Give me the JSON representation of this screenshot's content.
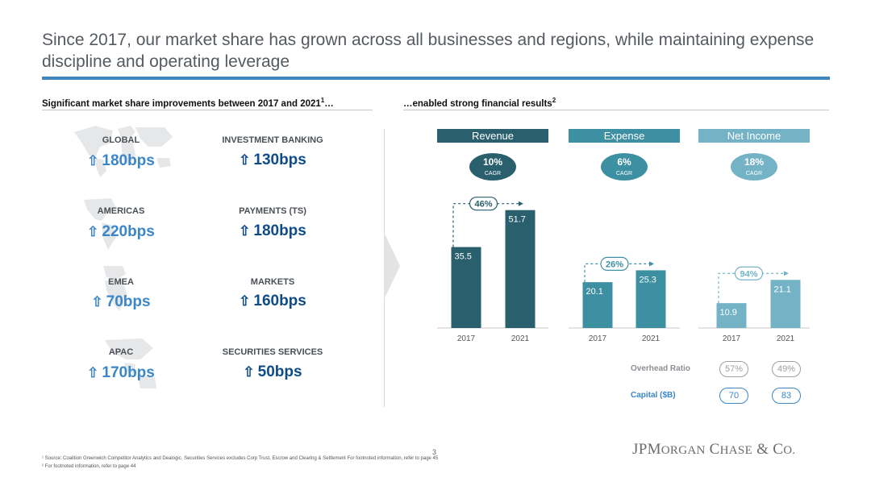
{
  "title": "Since 2017, our market share has grown across all businesses and regions, while maintaining expense discipline and operating leverage",
  "left_subtitle": "Significant market share improvements between 2017 and 2021",
  "left_subtitle_sup": "1",
  "left_subtitle_tail": "…",
  "right_subtitle": "…enabled strong financial results",
  "right_subtitle_sup": "2",
  "arrow_glyph": "⇧",
  "regions": [
    {
      "label": "GLOBAL",
      "value": "180bps"
    },
    {
      "label": "AMERICAS",
      "value": "220bps"
    },
    {
      "label": "EMEA",
      "value": "70bps"
    },
    {
      "label": "APAC",
      "value": "170bps"
    }
  ],
  "businesses": [
    {
      "label": "INVESTMENT BANKING",
      "value": "130bps"
    },
    {
      "label": "PAYMENTS (TS)",
      "value": "180bps"
    },
    {
      "label": "MARKETS",
      "value": "160bps"
    },
    {
      "label": "SECURITIES SERVICES",
      "value": "50bps"
    }
  ],
  "colors": {
    "revenue": "#2a5f6e",
    "expense": "#3d8fa2",
    "net_income": "#74b3c6",
    "light_blue": "#3a86c8",
    "dark_blue": "#0f4c87",
    "rule": "#3f86c0"
  },
  "chart_data": [
    {
      "type": "bar",
      "title": "Revenue",
      "categories": [
        "2017",
        "2021"
      ],
      "values": [
        35.5,
        51.7
      ],
      "cagr_value": "10%",
      "cagr_label": "CAGR",
      "growth_label": "46%"
    },
    {
      "type": "bar",
      "title": "Expense",
      "categories": [
        "2017",
        "2021"
      ],
      "values": [
        20.1,
        25.3
      ],
      "cagr_value": "6%",
      "cagr_label": "CAGR",
      "growth_label": "26%"
    },
    {
      "type": "bar",
      "title": "Net Income",
      "categories": [
        "2017",
        "2021"
      ],
      "values": [
        10.9,
        21.1
      ],
      "cagr_value": "18%",
      "cagr_label": "CAGR",
      "growth_label": "94%"
    }
  ],
  "overhead_ratio": {
    "label": "Overhead Ratio",
    "values": [
      "57%",
      "49%"
    ]
  },
  "capital": {
    "label": "Capital ($B)",
    "values": [
      "70",
      "83"
    ]
  },
  "page_number": "3",
  "footnote_1": "¹ Source: Coalition Greenwich Competitor Analytics and Dealogic. Securities Services excludes Corp Trust, Escrow and Clearing & Settlement For footnoted information, refer to page 45",
  "footnote_2": "² For footnoted information, refer to page 44",
  "logo": {
    "jp": "JP",
    "m": "M",
    "organ": "ORGAN",
    "c": "C",
    "hase": "HASE",
    "amp": " & ",
    "co": "C",
    "o": "O."
  }
}
